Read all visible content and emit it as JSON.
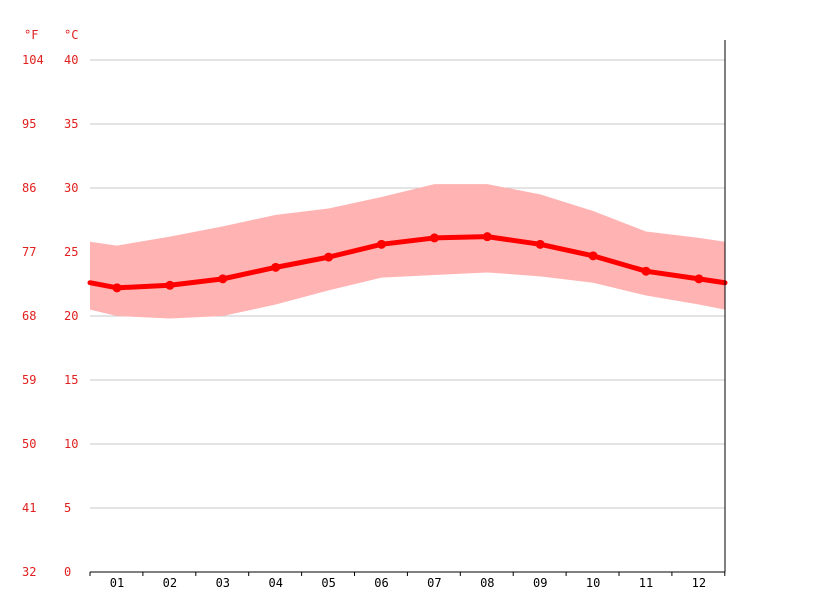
{
  "chart_data": {
    "type": "line",
    "title": "",
    "xlabel": "",
    "ylabel": "",
    "units": {
      "fahrenheit": "°F",
      "celsius": "°C"
    },
    "categories": [
      "01",
      "02",
      "03",
      "04",
      "05",
      "06",
      "07",
      "08",
      "09",
      "10",
      "11",
      "12"
    ],
    "ylim": [
      0,
      40
    ],
    "yticks_c": [
      "0",
      "5",
      "10",
      "15",
      "20",
      "25",
      "30",
      "35",
      "40"
    ],
    "yticks_f": [
      "32",
      "41",
      "50",
      "59",
      "68",
      "77",
      "86",
      "95",
      "104"
    ],
    "grid": true,
    "series": [
      {
        "role": "mean",
        "values": [
          22.2,
          22.4,
          22.9,
          23.8,
          24.6,
          25.6,
          26.1,
          26.2,
          25.6,
          24.7,
          23.5,
          22.9
        ]
      },
      {
        "role": "max",
        "values": [
          25.5,
          26.2,
          27.0,
          27.9,
          28.4,
          29.3,
          30.3,
          30.3,
          29.5,
          28.2,
          26.6,
          26.1
        ]
      },
      {
        "role": "min",
        "values": [
          20.0,
          19.8,
          20.0,
          20.9,
          22.0,
          23.0,
          23.2,
          23.4,
          23.1,
          22.6,
          21.6,
          20.9
        ]
      }
    ],
    "edge_values": {
      "mean": [
        22.6,
        22.6
      ],
      "max": [
        25.8,
        25.8
      ],
      "min": [
        20.5,
        20.5
      ]
    },
    "colors": {
      "line": "#ff0000",
      "band": "#ffb3b3",
      "grid": "#c8c8c8",
      "tick_text": "#e02020",
      "axis": "#000000"
    }
  }
}
